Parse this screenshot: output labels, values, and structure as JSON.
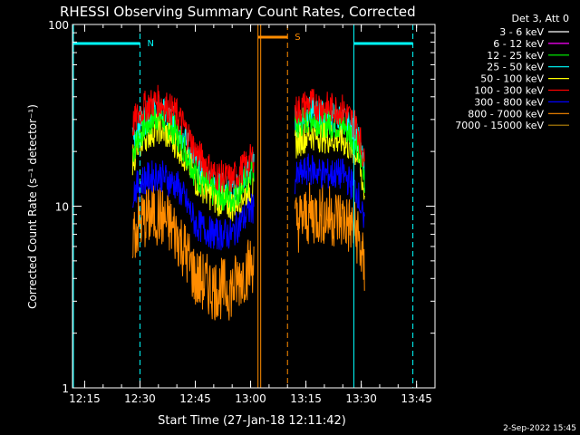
{
  "chart_data": {
    "type": "line",
    "title": "RHESSI Observing Summary Count Rates, Corrected",
    "xlabel": "Start Time (27-Jan-18 12:11:42)",
    "ylabel": "Corrected Count Rate (s⁻¹ detector⁻¹)",
    "yscale": "log",
    "ylim": [
      1,
      100
    ],
    "xlim_minutes": [
      "12:11:42",
      "13:50:00"
    ],
    "x_ticks": [
      "12:15",
      "12:30",
      "12:45",
      "13:00",
      "13:15",
      "13:30",
      "13:45"
    ],
    "y_ticks": [
      "1",
      "10",
      "100"
    ],
    "grid": false,
    "legend_header": "Det 3, Att 0",
    "legend_position": "top-right, outside plot",
    "series": [
      {
        "name": "3 - 6 keV",
        "color": "#ffffff",
        "x": [
          "12:28",
          "12:35",
          "12:45",
          "12:55",
          "13:02",
          "13:12",
          "13:20",
          "13:30"
        ],
        "y": [
          null,
          null,
          null,
          null,
          null,
          null,
          null,
          null
        ]
      },
      {
        "name": "6 - 12 keV",
        "color": "#ff00ff",
        "x": [
          "12:28",
          "12:35",
          "12:45",
          "12:55",
          "13:02",
          "13:12",
          "13:20",
          "13:30"
        ],
        "y": [
          null,
          null,
          null,
          null,
          null,
          null,
          null,
          null
        ]
      },
      {
        "name": "12 - 25 keV",
        "color": "#00ff00",
        "x": [
          "12:28",
          "12:31",
          "12:35",
          "12:40",
          "12:45",
          "12:50",
          "12:55",
          "12:59",
          "13:01",
          "13:12",
          "13:16",
          "13:20",
          "13:25",
          "13:29",
          "13:31"
        ],
        "y": [
          20,
          27,
          32,
          25,
          15,
          12,
          11,
          14,
          16,
          27,
          31,
          29,
          28,
          22,
          13
        ]
      },
      {
        "name": "25 - 50 keV",
        "color": "#00ffff",
        "x": [
          "12:28",
          "12:31",
          "12:35",
          "12:40",
          "12:45",
          "12:50",
          "12:55",
          "12:59",
          "13:01",
          "13:12",
          "13:16",
          "13:20",
          "13:25",
          "13:29",
          "13:31"
        ],
        "y": [
          24,
          30,
          34,
          28,
          17,
          13,
          12,
          15,
          17,
          29,
          33,
          31,
          30,
          24,
          14
        ]
      },
      {
        "name": "50 - 100 keV",
        "color": "#ffff00",
        "x": [
          "12:28",
          "12:31",
          "12:35",
          "12:40",
          "12:45",
          "12:50",
          "12:55",
          "12:59",
          "13:01",
          "13:12",
          "13:16",
          "13:20",
          "13:25",
          "13:29",
          "13:31"
        ],
        "y": [
          18,
          24,
          27,
          22,
          14,
          11,
          10,
          12,
          13,
          22,
          25,
          24,
          23,
          19,
          11
        ]
      },
      {
        "name": "100 - 300 keV",
        "color": "#ff0000",
        "x": [
          "12:28",
          "12:31",
          "12:35",
          "12:40",
          "12:45",
          "12:50",
          "12:55",
          "12:59",
          "13:01",
          "13:12",
          "13:16",
          "13:20",
          "13:25",
          "13:29",
          "13:31"
        ],
        "y": [
          28,
          35,
          38,
          32,
          20,
          15,
          14,
          17,
          19,
          33,
          37,
          35,
          34,
          27,
          16
        ]
      },
      {
        "name": "300 - 800 keV",
        "color": "#0000ff",
        "x": [
          "12:28",
          "12:31",
          "12:35",
          "12:40",
          "12:45",
          "12:50",
          "12:55",
          "12:59",
          "13:01",
          "13:12",
          "13:16",
          "13:20",
          "13:25",
          "13:29",
          "13:31"
        ],
        "y": [
          12,
          14,
          15,
          13,
          8,
          7,
          7,
          9,
          10,
          14,
          16,
          15,
          15,
          12,
          7
        ]
      },
      {
        "name": "800 - 7000 keV",
        "color": "#ff8c00",
        "x": [
          "12:28",
          "12:31",
          "12:35",
          "12:40",
          "12:45",
          "12:50",
          "12:55",
          "12:59",
          "13:01",
          "13:12",
          "13:16",
          "13:20",
          "13:25",
          "13:29",
          "13:31"
        ],
        "y": [
          7,
          8.5,
          9,
          7,
          4,
          3.5,
          3.5,
          4.5,
          5,
          8,
          9,
          9,
          8.5,
          7,
          4
        ]
      },
      {
        "name": "7000 - 15000 keV",
        "color": "#b8860b",
        "x": [
          "12:28",
          "12:35",
          "12:45",
          "12:55",
          "13:02",
          "13:12",
          "13:20",
          "13:30"
        ],
        "y": [
          null,
          null,
          null,
          null,
          null,
          null,
          null,
          null
        ]
      }
    ],
    "annotations": [
      {
        "label": "N",
        "color": "#00ffff",
        "bar_start": "12:11:42",
        "bar_end": "12:30",
        "line": "12:30"
      },
      {
        "label": "S",
        "color": "#ff8c00",
        "bar_start": "13:02",
        "bar_end": "13:10",
        "line": "13:10"
      }
    ],
    "night_lines": [
      {
        "color": "#00ffff",
        "solid": "13:28",
        "dashed": "13:44",
        "bar_start": "13:28",
        "bar_end": "13:44"
      }
    ],
    "saa_lines": [
      {
        "color": "#ff8c00",
        "solid": "13:02"
      }
    ],
    "footer_date": "2-Sep-2022 15:45"
  }
}
